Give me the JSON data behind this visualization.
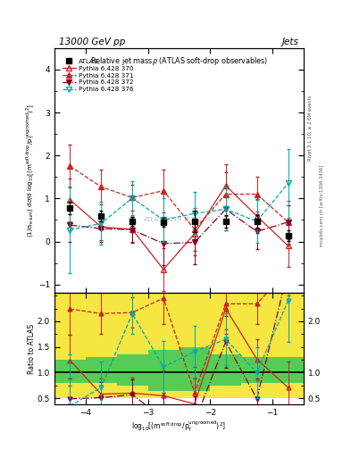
{
  "xlim": [
    -4.5,
    -0.5
  ],
  "ylim_main": [
    -1.2,
    4.5
  ],
  "ylim_ratio": [
    0.38,
    2.55
  ],
  "x_ticks": [
    -4,
    -3,
    -2,
    -1
  ],
  "x_data": [
    -4.25,
    -3.75,
    -3.25,
    -2.75,
    -2.25,
    -1.75,
    -1.25,
    -0.75
  ],
  "atlas_y": [
    0.78,
    0.59,
    0.47,
    0.45,
    0.46,
    0.47,
    0.47,
    0.14
  ],
  "atlas_yerr": [
    0.15,
    0.12,
    0.1,
    0.1,
    0.25,
    0.14,
    0.14,
    0.12
  ],
  "p370_y": [
    0.97,
    0.34,
    0.28,
    -0.65,
    0.18,
    1.3,
    0.59,
    -0.1
  ],
  "p370_yerr": [
    0.5,
    0.3,
    0.3,
    0.5,
    0.5,
    0.5,
    0.4,
    0.5
  ],
  "p371_y": [
    1.75,
    1.27,
    1.02,
    1.18,
    0.28,
    1.1,
    1.1,
    0.45
  ],
  "p371_yerr": [
    0.5,
    0.4,
    0.3,
    0.5,
    0.5,
    0.5,
    0.4,
    0.5
  ],
  "p372_y": [
    0.38,
    0.3,
    0.27,
    -0.05,
    -0.02,
    0.75,
    0.23,
    0.45
  ],
  "p372_yerr": [
    0.4,
    0.3,
    0.3,
    0.5,
    0.5,
    0.5,
    0.4,
    0.4
  ],
  "p376_y": [
    0.27,
    0.42,
    1.01,
    0.5,
    0.65,
    0.75,
    0.47,
    1.35
  ],
  "p376_yerr": [
    1.0,
    0.5,
    0.4,
    0.5,
    0.5,
    0.5,
    0.5,
    0.8
  ],
  "ratio_370": [
    1.24,
    0.58,
    0.6,
    0.55,
    0.39,
    2.25,
    1.26,
    0.71
  ],
  "ratio_370_err": [
    0.5,
    0.3,
    0.3,
    0.5,
    0.5,
    0.5,
    0.4,
    0.5
  ],
  "ratio_371": [
    2.24,
    2.15,
    2.17,
    2.45,
    0.61,
    2.34,
    2.34,
    3.0
  ],
  "ratio_371_err": [
    0.5,
    0.4,
    0.3,
    0.5,
    0.5,
    0.5,
    0.4,
    0.5
  ],
  "ratio_372": [
    0.49,
    0.51,
    0.57,
    0.11,
    0.04,
    1.6,
    0.49,
    3.0
  ],
  "ratio_372_err": [
    0.4,
    0.3,
    0.3,
    0.5,
    0.5,
    0.5,
    0.4,
    0.4
  ],
  "ratio_376": [
    0.35,
    0.71,
    2.15,
    1.11,
    1.41,
    1.65,
    1.0,
    2.4
  ],
  "ratio_376_err": [
    1.0,
    0.5,
    0.4,
    0.5,
    0.5,
    0.5,
    0.5,
    0.8
  ],
  "bin_edges": [
    -4.5,
    -4.0,
    -3.5,
    -3.0,
    -2.5,
    -2.0,
    -1.5,
    -1.0,
    -0.5
  ],
  "yellow_lo": [
    0.5,
    0.5,
    0.5,
    0.5,
    0.5,
    0.5,
    0.5,
    0.5
  ],
  "yellow_hi": [
    2.55,
    2.55,
    2.55,
    2.55,
    2.55,
    2.55,
    2.55,
    2.55
  ],
  "green_lo": [
    0.8,
    0.8,
    0.75,
    0.65,
    0.65,
    0.75,
    0.8,
    0.8
  ],
  "green_hi": [
    1.25,
    1.3,
    1.35,
    1.45,
    1.5,
    1.35,
    1.3,
    1.3
  ],
  "color_370": "#cc2222",
  "color_371": "#cc2222",
  "color_372": "#880022",
  "color_376": "#00aaaa",
  "color_atlas": "black"
}
